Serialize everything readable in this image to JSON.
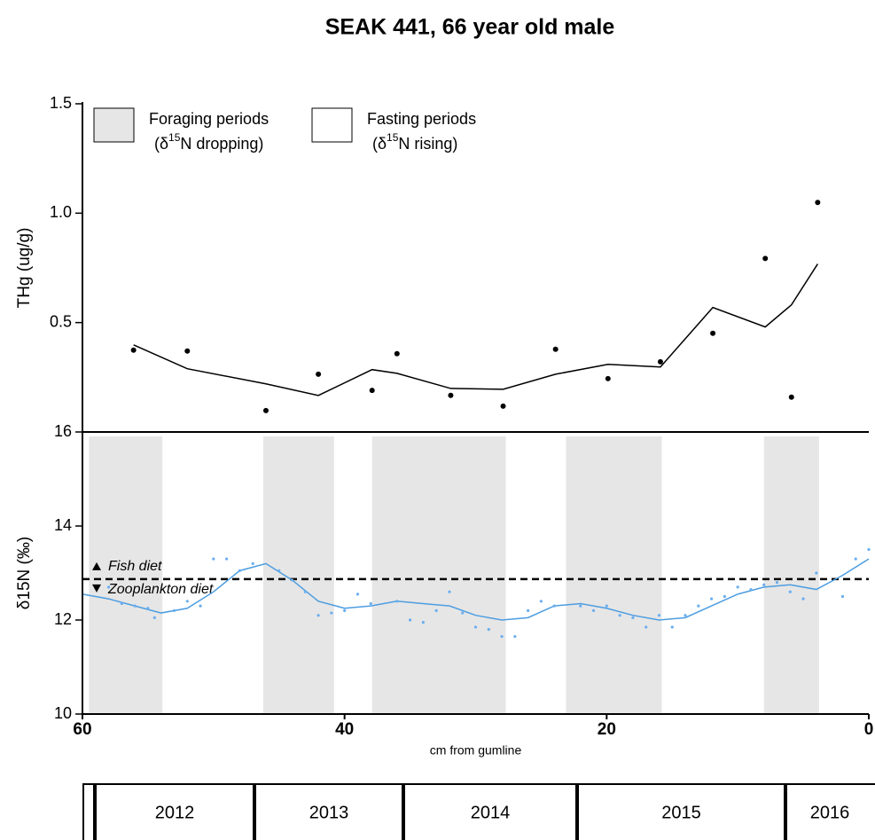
{
  "title": "SEAK 441, 66 year old male",
  "chart_data": [
    {
      "type": "line",
      "y_label": "THg (ug/g)",
      "xlim": [
        60,
        0
      ],
      "ylim": [
        0,
        1.5
      ],
      "yticks": [
        0.5,
        {
          "value": 1.0,
          "label": "1.0"
        },
        {
          "value": 1.5,
          "label": "1.5"
        }
      ],
      "points": {
        "color": "#000000",
        "x": [
          56.1,
          52.0,
          46.0,
          42.0,
          37.9,
          36.0,
          31.9,
          27.9,
          23.9,
          19.9,
          15.9,
          11.9,
          7.9,
          5.9,
          3.9
        ],
        "y": [
          0.374,
          0.37,
          0.098,
          0.264,
          0.19,
          0.358,
          0.167,
          0.118,
          0.378,
          0.244,
          0.321,
          0.451,
          0.793,
          0.159,
          1.049
        ]
      },
      "line": {
        "color": "#000000",
        "x": [
          56.1,
          52.0,
          46.0,
          42.0,
          37.9,
          36.0,
          31.9,
          27.9,
          23.9,
          19.9,
          15.9,
          11.9,
          7.9,
          5.9,
          3.9
        ],
        "y": [
          0.398,
          0.289,
          0.22,
          0.167,
          0.285,
          0.268,
          0.199,
          0.195,
          0.264,
          0.309,
          0.297,
          0.569,
          0.48,
          0.581,
          0.768
        ]
      },
      "legend": [
        {
          "label": "Foraging periods",
          "note": [
            "(δ",
            "15",
            "N dropping)"
          ],
          "color": "#e6e6e6"
        },
        {
          "label": "Fasting periods",
          "note": [
            "(δ",
            "15",
            "N rising)"
          ],
          "color": "#ffffff"
        }
      ]
    },
    {
      "type": "line",
      "y_label": "δ15N (‰)",
      "x_label": "cm from gumline",
      "xlim": [
        60,
        0
      ],
      "ylim": [
        10,
        16
      ],
      "yticks": [
        10,
        12,
        14,
        16
      ],
      "xticks": [
        60,
        40,
        20,
        0
      ],
      "shaded_x": [
        [
          59.5,
          53.9
        ],
        [
          46.2,
          40.8
        ],
        [
          37.9,
          27.7
        ],
        [
          23.1,
          15.8
        ],
        [
          8.0,
          3.8
        ]
      ],
      "shade_color": "#e6e6e6",
      "threshold": 12.87,
      "threshold_labels": [
        "Fish diet",
        "Zooplankton diet"
      ],
      "points": {
        "color": "#6aaef0",
        "x": [
          58,
          57,
          56,
          55,
          54.5,
          53,
          52,
          51,
          50,
          49,
          48,
          47,
          45,
          44,
          43,
          42,
          41,
          40,
          39,
          38,
          36,
          35,
          34,
          33,
          32,
          31,
          30,
          29,
          28,
          27,
          26,
          25,
          24,
          22,
          21,
          20,
          19,
          18,
          17,
          16,
          15,
          14,
          13,
          12,
          11,
          10,
          9,
          8,
          7,
          6,
          5,
          4,
          2,
          1,
          0
        ],
        "y": [
          12.7,
          12.35,
          12.3,
          12.25,
          12.05,
          12.2,
          12.4,
          12.3,
          13.3,
          13.3,
          13.05,
          13.2,
          13.05,
          12.85,
          12.6,
          12.1,
          12.15,
          12.2,
          12.55,
          12.35,
          12.4,
          12.0,
          11.95,
          12.2,
          12.6,
          12.15,
          11.85,
          11.8,
          11.65,
          11.65,
          12.2,
          12.4,
          12.3,
          12.3,
          12.2,
          12.3,
          12.1,
          12.05,
          11.85,
          12.1,
          11.85,
          12.1,
          12.3,
          12.45,
          12.5,
          12.7,
          12.65,
          12.75,
          12.8,
          12.6,
          12.45,
          13.0,
          12.5,
          13.3,
          13.5
        ]
      },
      "line": {
        "color": "#4d9de0",
        "x": [
          60,
          58,
          56,
          54,
          52,
          50,
          48,
          46,
          44,
          42,
          40,
          38,
          36,
          34,
          32,
          30,
          28,
          26,
          24,
          22,
          20,
          18,
          16,
          14,
          12,
          10,
          8,
          6,
          4,
          2,
          0
        ],
        "y": [
          12.55,
          12.45,
          12.3,
          12.15,
          12.25,
          12.6,
          13.05,
          13.2,
          12.85,
          12.4,
          12.25,
          12.3,
          12.4,
          12.35,
          12.3,
          12.1,
          12.0,
          12.05,
          12.3,
          12.35,
          12.25,
          12.1,
          12.0,
          12.05,
          12.3,
          12.55,
          12.7,
          12.75,
          12.65,
          12.95,
          13.3
        ]
      }
    }
  ],
  "year_table": {
    "columns": [
      "2012",
      "2013",
      "2014",
      "2015",
      "2016"
    ]
  }
}
